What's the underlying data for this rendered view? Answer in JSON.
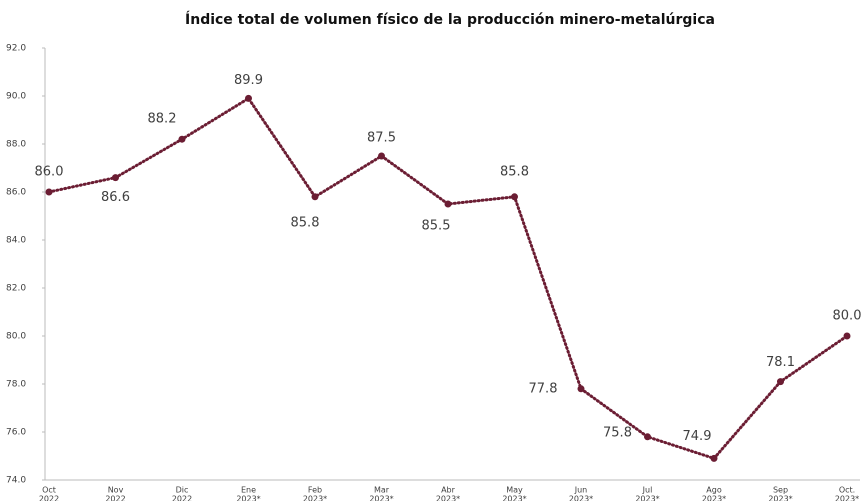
{
  "chart_data": {
    "type": "line",
    "title": "Índice total de volumen físico de la producción minero-metalúrgica",
    "categories": [
      [
        "Oct",
        "2022"
      ],
      [
        "Nov",
        "2022"
      ],
      [
        "Dic",
        "2022"
      ],
      [
        "Ene",
        "2023*"
      ],
      [
        "Feb",
        "2023*"
      ],
      [
        "Mar",
        "2023*"
      ],
      [
        "Abr",
        "2023*"
      ],
      [
        "May",
        "2023*"
      ],
      [
        "Jun",
        "2023*"
      ],
      [
        "Jul",
        "2023*"
      ],
      [
        "Ago",
        "2023*"
      ],
      [
        "Sep",
        "2023*"
      ],
      [
        "Oct.",
        "2023*"
      ]
    ],
    "series": [
      {
        "name": "Índice",
        "color": "#6b1d33",
        "values": [
          86.0,
          86.6,
          88.2,
          89.9,
          85.8,
          87.5,
          85.5,
          85.8,
          77.8,
          75.8,
          74.9,
          78.1,
          80.0
        ],
        "value_labels": [
          "86.0",
          "86.6",
          "88.2",
          "89.9",
          "85.8",
          "87.5",
          "85.5",
          "85.8",
          "77.8",
          "75.8",
          "74.9",
          "78.1",
          "80.0"
        ]
      }
    ],
    "ylim": [
      74,
      92
    ],
    "yticks": [
      {
        "value": 74,
        "label": "74.0"
      },
      {
        "value": 76,
        "label": "76.0"
      },
      {
        "value": 78,
        "label": "78.0"
      },
      {
        "value": 80,
        "label": "80.0"
      },
      {
        "value": 82,
        "label": "82.0"
      },
      {
        "value": 84,
        "label": "84.0"
      },
      {
        "value": 86,
        "label": "86.0"
      },
      {
        "value": 88,
        "label": "88.0"
      },
      {
        "value": 90,
        "label": "90.0"
      },
      {
        "value": 92,
        "label": "92.0"
      }
    ],
    "grid": false
  }
}
